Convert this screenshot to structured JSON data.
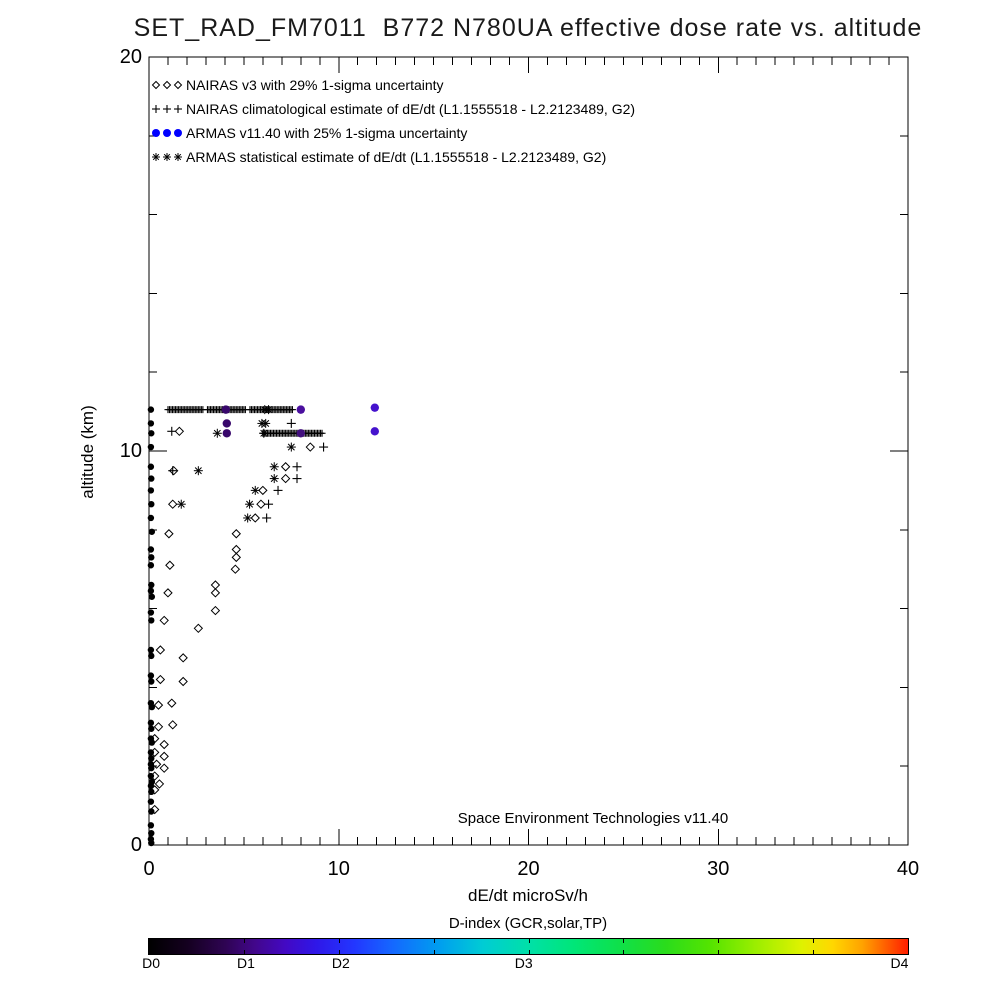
{
  "chart_data": {
    "type": "scatter",
    "title": "SET_RAD_FM7011  B772 N780UA effective dose rate vs. altitude",
    "xlabel": "dE/dt microSv/h",
    "ylabel": "altitude (km)",
    "annotation": "Space Environment Technologies v11.40",
    "xlim": [
      0,
      40
    ],
    "ylim": [
      0,
      20
    ],
    "x_major_ticks": [
      0,
      10,
      20,
      30,
      40
    ],
    "x_minor_step": 1,
    "y_major_ticks": [
      0,
      10,
      20
    ],
    "y_minor_step": 2,
    "x_tick_labels": [
      "0",
      "10",
      "20",
      "30",
      "40"
    ],
    "y_tick_labels": [
      "20",
      "10",
      "0"
    ],
    "grid": false,
    "legend_position": "top-left-inside",
    "axis_color": "#000000",
    "series": [
      {
        "name": "NAIRAS v3 with 29% 1-sigma uncertainty",
        "marker": "diamond",
        "color": "#000000",
        "points": [
          [
            1.6,
            10.5
          ],
          [
            8.5,
            10.1
          ],
          [
            1.3,
            9.5
          ],
          [
            7.2,
            9.6
          ],
          [
            7.2,
            9.3
          ],
          [
            6.0,
            9.0
          ],
          [
            1.25,
            8.65
          ],
          [
            5.9,
            8.65
          ],
          [
            5.6,
            8.3
          ],
          [
            1.05,
            7.9
          ],
          [
            4.6,
            7.9
          ],
          [
            4.6,
            7.5
          ],
          [
            4.6,
            7.3
          ],
          [
            1.1,
            7.1
          ],
          [
            4.55,
            7.0
          ],
          [
            3.5,
            6.6
          ],
          [
            1.0,
            6.4
          ],
          [
            3.5,
            6.4
          ],
          [
            3.5,
            5.95
          ],
          [
            0.8,
            5.7
          ],
          [
            2.6,
            5.5
          ],
          [
            0.6,
            4.95
          ],
          [
            1.8,
            4.75
          ],
          [
            0.6,
            4.2
          ],
          [
            1.8,
            4.15
          ],
          [
            1.2,
            3.6
          ],
          [
            0.5,
            3.55
          ],
          [
            1.25,
            3.05
          ],
          [
            0.5,
            3.0
          ],
          [
            0.3,
            2.7
          ],
          [
            0.8,
            2.55
          ],
          [
            0.3,
            2.35
          ],
          [
            0.8,
            2.25
          ],
          [
            0.4,
            2.05
          ],
          [
            0.8,
            1.95
          ],
          [
            0.3,
            1.75
          ],
          [
            0.55,
            1.55
          ],
          [
            0.3,
            1.4
          ],
          [
            0.3,
            0.9
          ]
        ]
      },
      {
        "name": "NAIRAS climatological estimate of dE/dt (L1.1555518 - L2.2123489, G2)",
        "marker": "plus",
        "color": "#000000",
        "points": [
          [
            1.2,
            10.5
          ],
          [
            7.5,
            10.7
          ],
          [
            9.2,
            10.1
          ],
          [
            1.25,
            9.5
          ],
          [
            7.8,
            9.6
          ],
          [
            7.8,
            9.3
          ],
          [
            6.8,
            9.0
          ],
          [
            6.3,
            8.65
          ],
          [
            6.2,
            8.3
          ]
        ],
        "bands": [
          {
            "alt": 11.05,
            "from": 1.0,
            "to": 7.6,
            "gaps": [
              [
                2.9,
                3.05
              ],
              [
                5.15,
                5.3
              ]
            ]
          },
          {
            "alt": 10.45,
            "from": 6.0,
            "to": 9.2,
            "gaps": []
          }
        ]
      },
      {
        "name": "ARMAS v11.40 with 25% 1-sigma uncertainty",
        "marker": "dot",
        "color": "#0000ff",
        "points_colored": [
          [
            4.05,
            11.05,
            "#38076b"
          ],
          [
            8.0,
            11.05,
            "#4a0f9e"
          ],
          [
            11.9,
            11.1,
            "#4513cd"
          ],
          [
            4.1,
            10.7,
            "#38076b"
          ],
          [
            4.1,
            10.45,
            "#38076b"
          ],
          [
            8.0,
            10.45,
            "#42107e"
          ],
          [
            11.9,
            10.5,
            "#4513cd"
          ]
        ],
        "points_axis": [
          [
            0.1,
            11.05
          ],
          [
            0.1,
            10.7
          ],
          [
            0.12,
            10.45
          ],
          [
            0.1,
            10.1
          ],
          [
            0.1,
            9.6
          ],
          [
            0.12,
            9.3
          ],
          [
            0.1,
            9.0
          ],
          [
            0.12,
            8.65
          ],
          [
            0.1,
            8.3
          ],
          [
            0.15,
            7.95
          ],
          [
            0.1,
            7.5
          ],
          [
            0.12,
            7.3
          ],
          [
            0.1,
            7.1
          ],
          [
            0.12,
            6.6
          ],
          [
            0.1,
            6.45
          ],
          [
            0.15,
            6.3
          ],
          [
            0.1,
            5.9
          ],
          [
            0.12,
            5.7
          ],
          [
            0.1,
            4.95
          ],
          [
            0.12,
            4.8
          ],
          [
            0.1,
            4.3
          ],
          [
            0.12,
            4.15
          ],
          [
            0.1,
            3.6
          ],
          [
            0.15,
            3.5
          ],
          [
            0.1,
            3.1
          ],
          [
            0.12,
            2.95
          ],
          [
            0.1,
            2.7
          ],
          [
            0.15,
            2.6
          ],
          [
            0.1,
            2.35
          ],
          [
            0.12,
            2.2
          ],
          [
            0.1,
            2.05
          ],
          [
            0.12,
            1.95
          ],
          [
            0.1,
            1.75
          ],
          [
            0.15,
            1.6
          ],
          [
            0.1,
            1.5
          ],
          [
            0.12,
            1.35
          ],
          [
            0.1,
            1.1
          ],
          [
            0.12,
            0.85
          ],
          [
            0.1,
            0.5
          ],
          [
            0.12,
            0.3
          ],
          [
            0.1,
            0.15
          ],
          [
            0.12,
            0.05
          ]
        ],
        "points_axis_color": "#000000"
      },
      {
        "name": "ARMAS statistical estimate of dE/dt (L1.1555518 - L2.2123489, G2)",
        "marker": "asterisk",
        "color": "#000000",
        "points": [
          [
            6.1,
            11.05
          ],
          [
            6.3,
            11.05
          ],
          [
            5.95,
            10.7
          ],
          [
            6.15,
            10.7
          ],
          [
            3.6,
            10.45
          ],
          [
            6.05,
            10.45
          ],
          [
            7.5,
            10.1
          ],
          [
            2.6,
            9.5
          ],
          [
            6.6,
            9.6
          ],
          [
            6.6,
            9.3
          ],
          [
            5.6,
            9.0
          ],
          [
            1.7,
            8.65
          ],
          [
            5.3,
            8.65
          ],
          [
            5.2,
            8.3
          ]
        ]
      }
    ],
    "colorbar": {
      "label": "D-index (GCR,solar,TP)",
      "tick_labels": [
        "D0",
        "D1",
        "D2",
        "D3",
        "D4"
      ],
      "tick_positions": [
        0.004,
        0.129,
        0.254,
        0.495,
        0.99
      ],
      "segment_ticks": 8,
      "gradient": [
        [
          0,
          "#000000"
        ],
        [
          0.05,
          "#14001f"
        ],
        [
          0.1,
          "#2e0452"
        ],
        [
          0.14,
          "#42078c"
        ],
        [
          0.18,
          "#4309c4"
        ],
        [
          0.22,
          "#2f17e8"
        ],
        [
          0.27,
          "#2336ff"
        ],
        [
          0.32,
          "#1567ff"
        ],
        [
          0.38,
          "#009cf0"
        ],
        [
          0.44,
          "#00ccd4"
        ],
        [
          0.5,
          "#00e0a8"
        ],
        [
          0.56,
          "#00e678"
        ],
        [
          0.62,
          "#0fe04a"
        ],
        [
          0.68,
          "#2adc1c"
        ],
        [
          0.74,
          "#55e400"
        ],
        [
          0.8,
          "#9cee00"
        ],
        [
          0.86,
          "#dff200"
        ],
        [
          0.9,
          "#ffd800"
        ],
        [
          0.94,
          "#ffa200"
        ],
        [
          0.97,
          "#ff6000"
        ],
        [
          1,
          "#ff1e00"
        ]
      ]
    }
  }
}
